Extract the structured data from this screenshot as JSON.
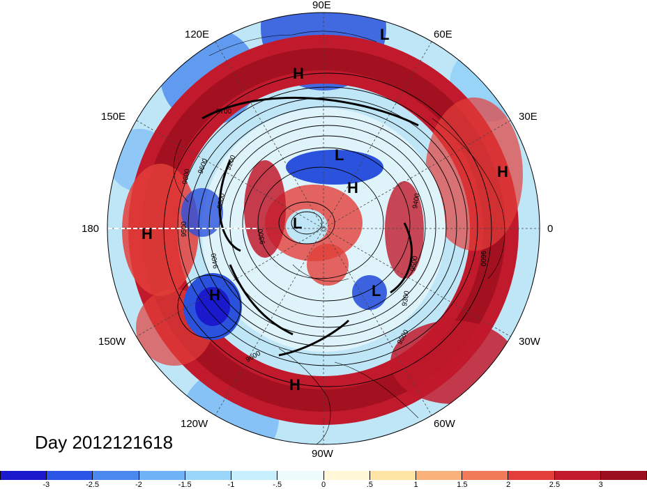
{
  "day_label": "Day 2012121618",
  "longitude_labels": {
    "e90": "90E",
    "e120": "120E",
    "e60": "60E",
    "e150": "150E",
    "e30": "30E",
    "d180": "180",
    "d0": "0",
    "w150": "150W",
    "w30": "30W",
    "w120": "120W",
    "w60": "60W",
    "w90": "90W"
  },
  "pressure_centers": [
    {
      "type": "L",
      "lon_label": "near 60E"
    },
    {
      "type": "H",
      "lon_label": "near 100E"
    },
    {
      "type": "L",
      "lon_label": "near pole 90E"
    },
    {
      "type": "H",
      "lon_label": "near pole 70E"
    },
    {
      "type": "L",
      "lon_label": "near pole 150E"
    },
    {
      "type": "H",
      "lon_label": "near 20E"
    },
    {
      "type": "H",
      "lon_label": "near 180"
    },
    {
      "type": "H",
      "lon_label": "near 150W"
    },
    {
      "type": "L",
      "lon_label": "near 60W"
    },
    {
      "type": "H",
      "lon_label": "near 95W"
    }
  ],
  "contour_labels": [
    "9700",
    "9600",
    "9500",
    "9300",
    "9200",
    "9400",
    "9300",
    "9400",
    "9300",
    "9500",
    "9600",
    "9600",
    "9500",
    "9600"
  ],
  "colorbar": {
    "ticks": [
      "-3",
      "-2.5",
      "-2",
      "-1.5",
      "-1",
      "-.5",
      "0",
      ".5",
      "1",
      "1.5",
      "2",
      "2.5",
      "3"
    ],
    "colors": [
      "#1a1acc",
      "#2b55e6",
      "#4a88ee",
      "#6fb2f5",
      "#9ad6fa",
      "#c6eefc",
      "#eefbfd",
      "#fff7d6",
      "#fde3a4",
      "#f8b27a",
      "#f07a58",
      "#e23e3a",
      "#c11a2c",
      "#9b0e1d"
    ]
  }
}
